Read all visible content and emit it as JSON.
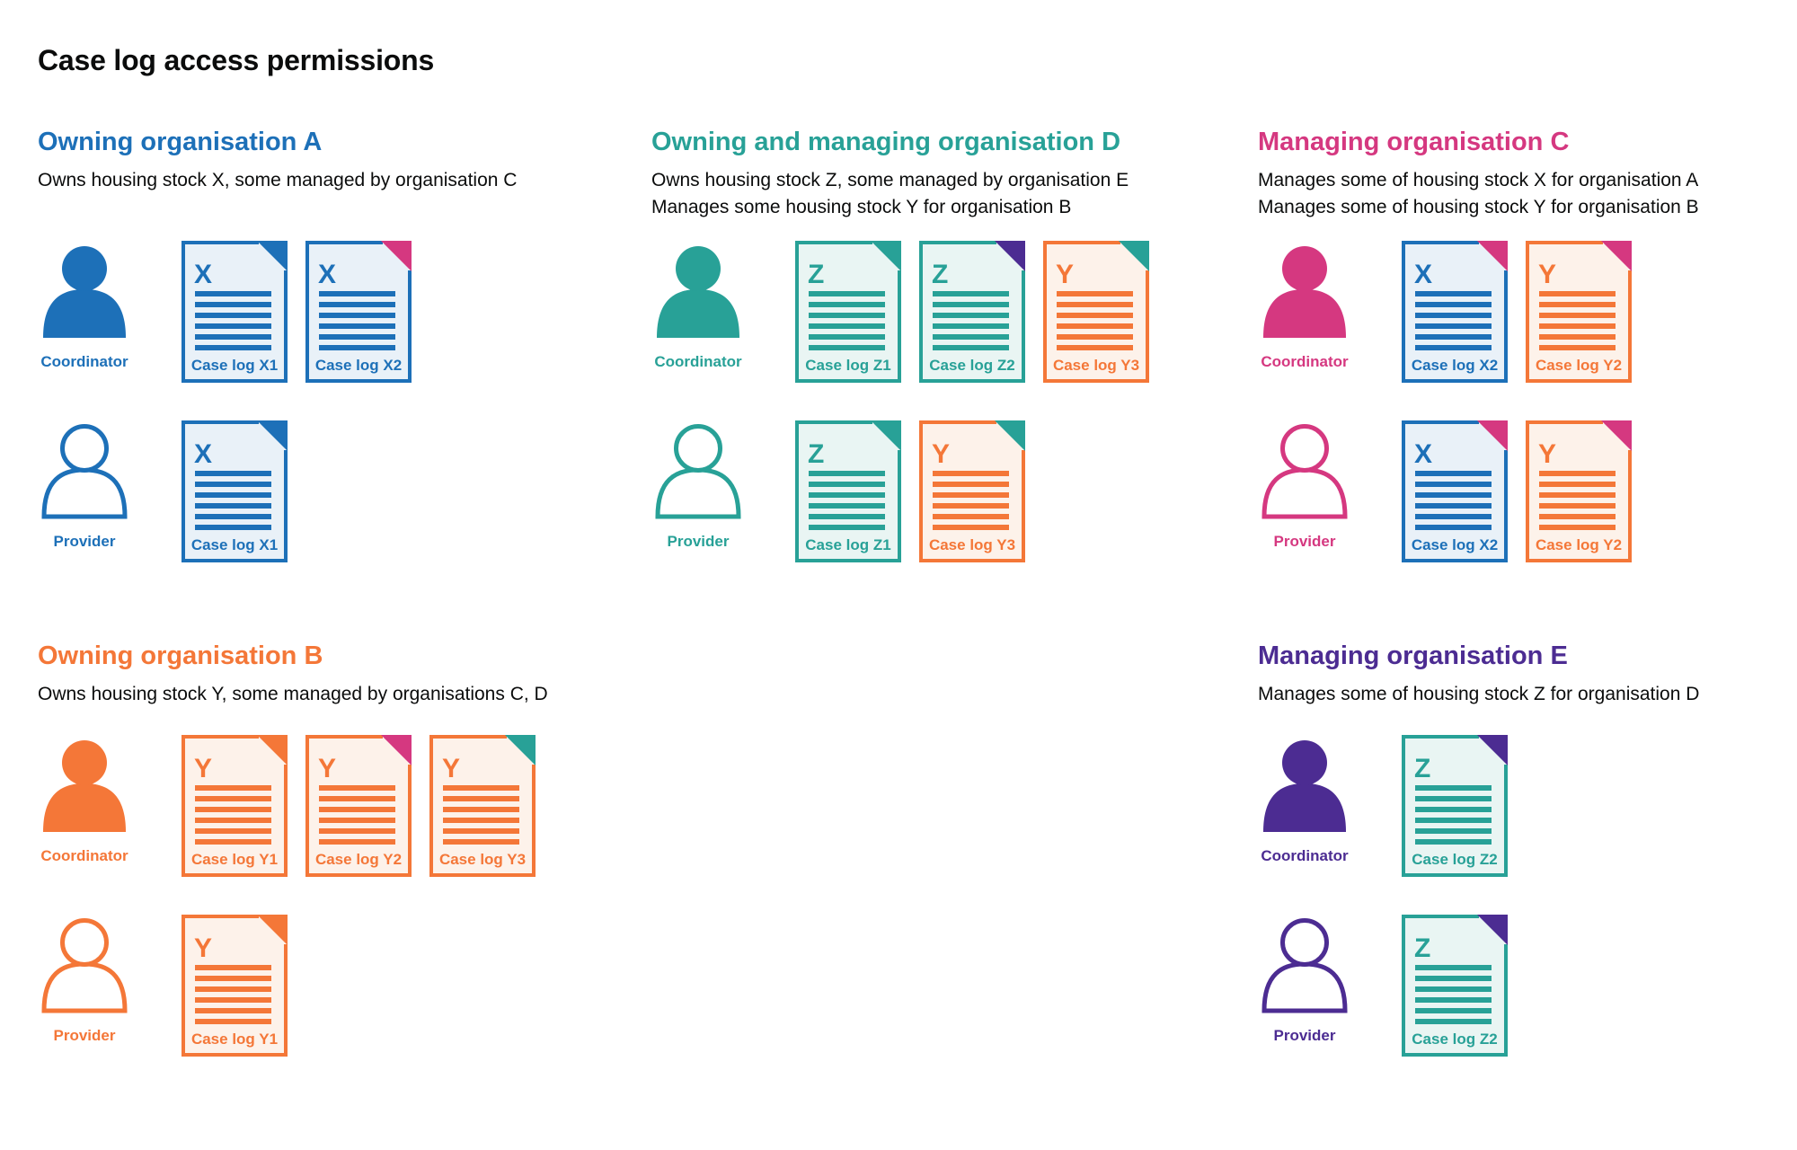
{
  "title": "Case log access permissions",
  "palette": {
    "blue": {
      "main": "#1d70b8",
      "bg": "#e9f1f8"
    },
    "teal": {
      "main": "#28a197",
      "bg": "#e9f5f3"
    },
    "pink": {
      "main": "#d53880",
      "bg": "#fbeef5"
    },
    "orange": {
      "main": "#f47738",
      "bg": "#fdf2ea"
    },
    "purple": {
      "main": "#4c2c92",
      "bg": "#efecf6"
    }
  },
  "sections": [
    {
      "id": "owning-organisation-a",
      "heading": "Owning organisation A",
      "color": "blue",
      "description": [
        "Owns housing stock X, some managed by organisation C"
      ],
      "rows": [
        {
          "role": "Coordinator",
          "person": "filled",
          "docs": [
            {
              "letter": "X",
              "label": "Case log X1",
              "doc_color": "blue",
              "corner_color": "blue"
            },
            {
              "letter": "X",
              "label": "Case log X2",
              "doc_color": "blue",
              "corner_color": "pink"
            }
          ]
        },
        {
          "role": "Provider",
          "person": "outline",
          "docs": [
            {
              "letter": "X",
              "label": "Case log X1",
              "doc_color": "blue",
              "corner_color": "blue"
            }
          ]
        }
      ]
    },
    {
      "id": "owning-and-managing-organisation-d",
      "heading": "Owning and managing organisation D",
      "color": "teal",
      "description": [
        "Owns housing stock Z, some managed by organisation E",
        "Manages some housing stock Y for organisation B"
      ],
      "rows": [
        {
          "role": "Coordinator",
          "person": "filled",
          "docs": [
            {
              "letter": "Z",
              "label": "Case log Z1",
              "doc_color": "teal",
              "corner_color": "teal"
            },
            {
              "letter": "Z",
              "label": "Case log Z2",
              "doc_color": "teal",
              "corner_color": "purple"
            },
            {
              "letter": "Y",
              "label": "Case log Y3",
              "doc_color": "orange",
              "corner_color": "teal"
            }
          ]
        },
        {
          "role": "Provider",
          "person": "outline",
          "docs": [
            {
              "letter": "Z",
              "label": "Case log Z1",
              "doc_color": "teal",
              "corner_color": "teal"
            },
            {
              "letter": "Y",
              "label": "Case log Y3",
              "doc_color": "orange",
              "corner_color": "teal"
            }
          ]
        }
      ]
    },
    {
      "id": "managing-organisation-c",
      "heading": "Managing organisation C",
      "color": "pink",
      "description": [
        "Manages some of housing stock X for organisation A",
        "Manages some of housing stock Y for organisation B"
      ],
      "rows": [
        {
          "role": "Coordinator",
          "person": "filled",
          "docs": [
            {
              "letter": "X",
              "label": "Case log X2",
              "doc_color": "blue",
              "corner_color": "pink"
            },
            {
              "letter": "Y",
              "label": "Case log Y2",
              "doc_color": "orange",
              "corner_color": "pink"
            }
          ]
        },
        {
          "role": "Provider",
          "person": "outline",
          "docs": [
            {
              "letter": "X",
              "label": "Case log X2",
              "doc_color": "blue",
              "corner_color": "pink"
            },
            {
              "letter": "Y",
              "label": "Case log Y2",
              "doc_color": "orange",
              "corner_color": "pink"
            }
          ]
        }
      ]
    },
    {
      "id": "owning-organisation-b",
      "heading": "Owning organisation B",
      "color": "orange",
      "description": [
        "Owns housing stock Y, some managed by organisations C, D"
      ],
      "rows": [
        {
          "role": "Coordinator",
          "person": "filled",
          "docs": [
            {
              "letter": "Y",
              "label": "Case log Y1",
              "doc_color": "orange",
              "corner_color": "orange"
            },
            {
              "letter": "Y",
              "label": "Case log Y2",
              "doc_color": "orange",
              "corner_color": "pink"
            },
            {
              "letter": "Y",
              "label": "Case log Y3",
              "doc_color": "orange",
              "corner_color": "teal"
            }
          ]
        },
        {
          "role": "Provider",
          "person": "outline",
          "docs": [
            {
              "letter": "Y",
              "label": "Case log Y1",
              "doc_color": "orange",
              "corner_color": "orange"
            }
          ]
        }
      ]
    },
    {
      "id": "managing-organisation-e",
      "heading": "Managing organisation E",
      "color": "purple",
      "description": [
        "Manages some of housing stock Z for organisation D"
      ],
      "rows": [
        {
          "role": "Coordinator",
          "person": "filled",
          "docs": [
            {
              "letter": "Z",
              "label": "Case log Z2",
              "doc_color": "teal",
              "corner_color": "purple"
            }
          ]
        },
        {
          "role": "Provider",
          "person": "outline",
          "docs": [
            {
              "letter": "Z",
              "label": "Case log Z2",
              "doc_color": "teal",
              "corner_color": "purple"
            }
          ]
        }
      ]
    }
  ]
}
